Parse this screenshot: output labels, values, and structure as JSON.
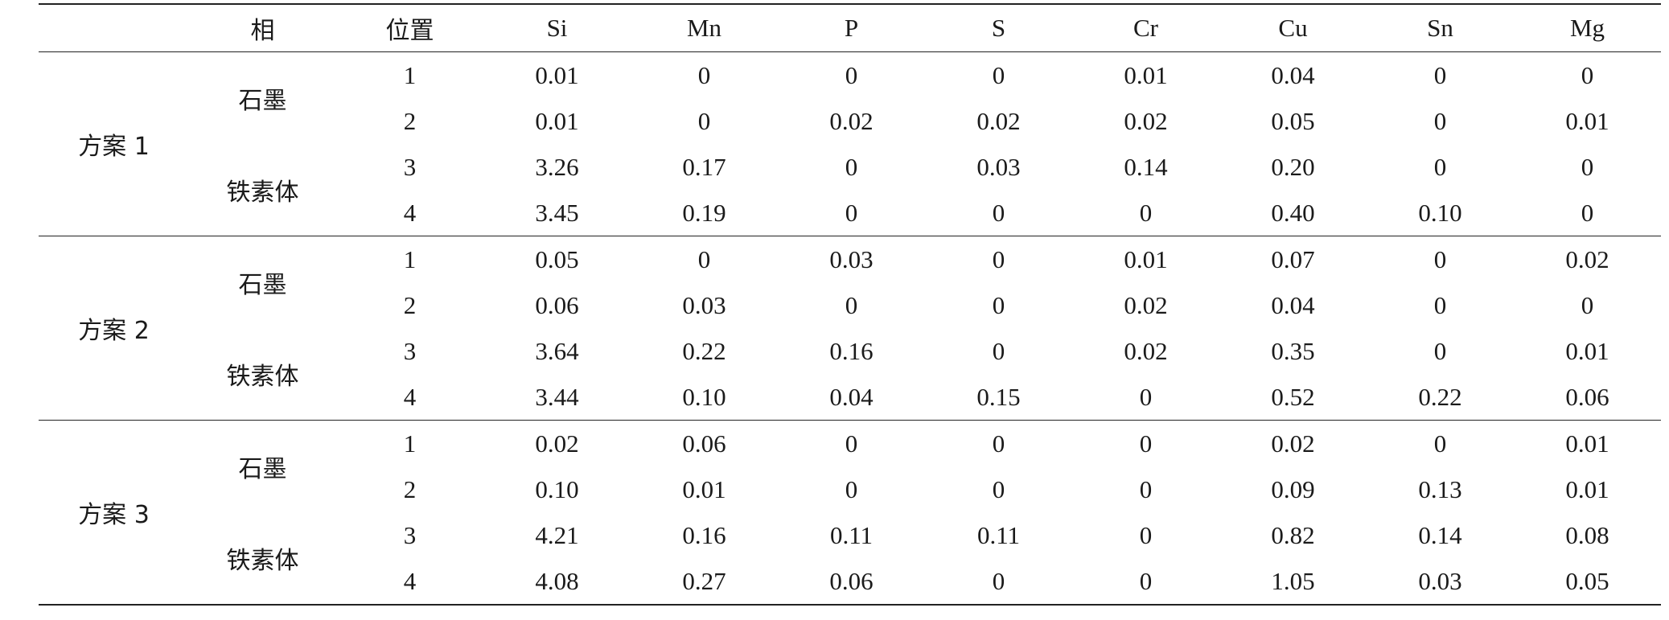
{
  "table": {
    "columns": [
      "",
      "相",
      "位置",
      "Si",
      "Mn",
      "P",
      "S",
      "Cr",
      "Cu",
      "Sn",
      "Mg"
    ],
    "groups": [
      {
        "label": "方案 1",
        "phases": [
          "石墨",
          "铁素体"
        ],
        "rows": [
          [
            "1",
            "0.01",
            "0",
            "0",
            "0",
            "0.01",
            "0.04",
            "0",
            "0"
          ],
          [
            "2",
            "0.01",
            "0",
            "0.02",
            "0.02",
            "0.02",
            "0.05",
            "0",
            "0.01"
          ],
          [
            "3",
            "3.26",
            "0.17",
            "0",
            "0.03",
            "0.14",
            "0.20",
            "0",
            "0"
          ],
          [
            "4",
            "3.45",
            "0.19",
            "0",
            "0",
            "0",
            "0.40",
            "0.10",
            "0"
          ]
        ]
      },
      {
        "label": "方案 2",
        "phases": [
          "石墨",
          "铁素体"
        ],
        "rows": [
          [
            "1",
            "0.05",
            "0",
            "0.03",
            "0",
            "0.01",
            "0.07",
            "0",
            "0.02"
          ],
          [
            "2",
            "0.06",
            "0.03",
            "0",
            "0",
            "0.02",
            "0.04",
            "0",
            "0"
          ],
          [
            "3",
            "3.64",
            "0.22",
            "0.16",
            "0",
            "0.02",
            "0.35",
            "0",
            "0.01"
          ],
          [
            "4",
            "3.44",
            "0.10",
            "0.04",
            "0.15",
            "0",
            "0.52",
            "0.22",
            "0.06"
          ]
        ]
      },
      {
        "label": "方案 3",
        "phases": [
          "石墨",
          "铁素体"
        ],
        "rows": [
          [
            "1",
            "0.02",
            "0.06",
            "0",
            "0",
            "0",
            "0.02",
            "0",
            "0.01"
          ],
          [
            "2",
            "0.10",
            "0.01",
            "0",
            "0",
            "0",
            "0.09",
            "0.13",
            "0.01"
          ],
          [
            "3",
            "4.21",
            "0.16",
            "0.11",
            "0.11",
            "0",
            "0.82",
            "0.14",
            "0.08"
          ],
          [
            "4",
            "4.08",
            "0.27",
            "0.06",
            "0",
            "0",
            "1.05",
            "0.03",
            "0.05"
          ]
        ]
      }
    ]
  }
}
